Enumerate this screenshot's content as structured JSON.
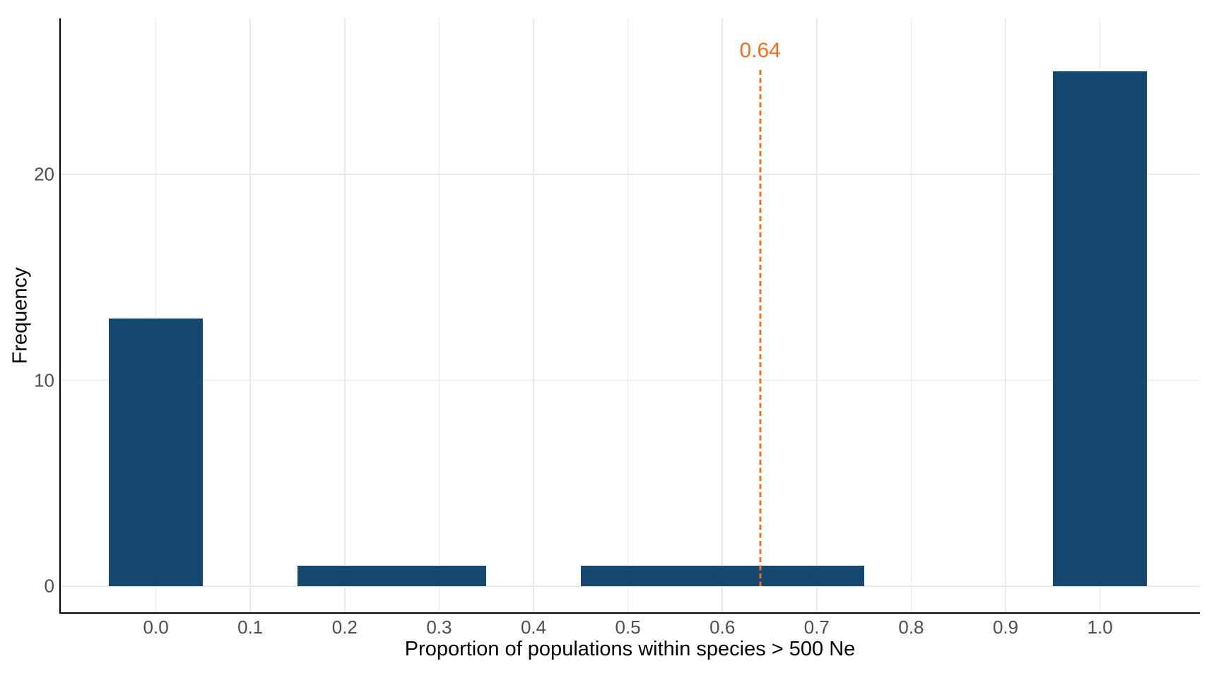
{
  "chart_data": {
    "type": "histogram",
    "title": "",
    "xlabel": "Proportion of populations within species > 500 Ne",
    "ylabel": "Frequency",
    "binwidth": 0.1,
    "bins": [
      {
        "center": 0.0,
        "count": 13
      },
      {
        "center": 0.2,
        "count": 1
      },
      {
        "center": 0.3,
        "count": 1
      },
      {
        "center": 0.5,
        "count": 1
      },
      {
        "center": 0.6,
        "count": 1
      },
      {
        "center": 0.7,
        "count": 1
      },
      {
        "center": 1.0,
        "count": 25
      }
    ],
    "x_tick_values": [
      0.0,
      0.1,
      0.2,
      0.3,
      0.4,
      0.5,
      0.6,
      0.7,
      0.8,
      0.9,
      1.0
    ],
    "x_tick_labels": [
      "0.0",
      "0.1",
      "0.2",
      "0.3",
      "0.4",
      "0.5",
      "0.6",
      "0.7",
      "0.8",
      "0.9",
      "1.0"
    ],
    "y_tick_values": [
      0,
      10,
      20
    ],
    "y_tick_labels": [
      "0",
      "10",
      "20"
    ],
    "xlim": [
      -0.1015,
      1.1058
    ],
    "ylim": [
      -1.27,
      27.59
    ],
    "grid": true,
    "legend": "none",
    "vline": {
      "x": 0.64,
      "label": "0.64",
      "style": "dashed",
      "line_from": 0,
      "line_to": 25.1,
      "label_y": 26
    },
    "colors": {
      "bar": "#15486E",
      "vline": "#F2701D",
      "gridline": "#E9E9E9",
      "axis_line": "#000000",
      "tick_text": "#4D4D4D",
      "title_text": "#000000",
      "background": "#FFFFFF"
    }
  }
}
